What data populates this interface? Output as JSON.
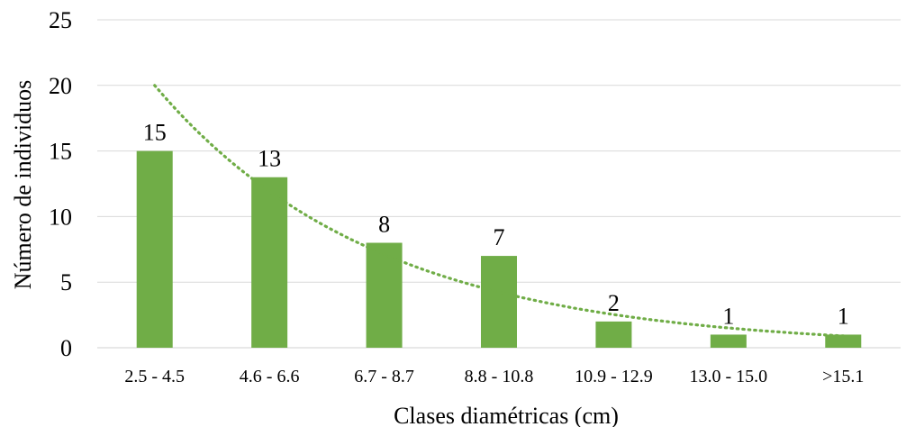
{
  "chart_data": {
    "type": "bar",
    "categories": [
      "2.5 - 4.5",
      "4.6 - 6.6",
      "6.7 - 8.7",
      "8.8 - 10.8",
      "10.9 - 12.9",
      "13.0 - 15.0",
      ">15.1"
    ],
    "values": [
      15,
      13,
      8,
      7,
      2,
      1,
      1
    ],
    "data_labels": [
      "15",
      "13",
      "8",
      "7",
      "2",
      "1",
      "1"
    ],
    "xlabel": "Clases diamétricas (cm)",
    "ylabel": "Número de individuos",
    "ylim": [
      0,
      25
    ],
    "yticks": [
      0,
      5,
      10,
      15,
      20,
      25
    ],
    "ytick_labels": [
      "0",
      "5",
      "10",
      "15",
      "20",
      "25"
    ],
    "grid": true,
    "legend": "none",
    "trendline": {
      "type": "exponential",
      "style": "dotted",
      "values": [
        20.0,
        13.0,
        7.5,
        4.3,
        2.5,
        1.5,
        0.9
      ]
    },
    "colors": {
      "bar": "#70ad47",
      "trendline": "#70ad47",
      "grid": "#d9d9d9",
      "text": "#000000"
    }
  }
}
